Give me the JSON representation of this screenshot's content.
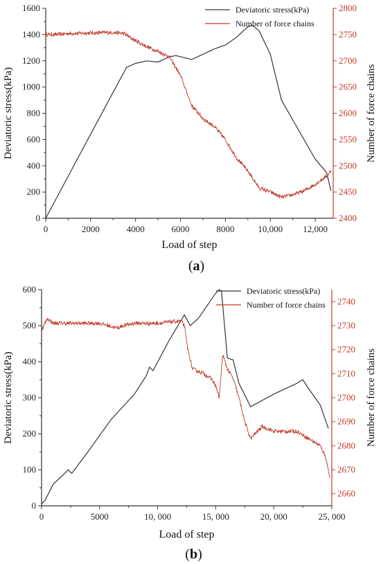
{
  "chart_data": [
    {
      "type": "line",
      "panel_label": "a",
      "xlabel": "Load of step",
      "xlim": [
        0,
        12800
      ],
      "xticks": [
        "0",
        "2000",
        "4000",
        "6000",
        "8000",
        "10,000",
        "12,000"
      ],
      "xtick_values": [
        0,
        2000,
        4000,
        6000,
        8000,
        10000,
        12000
      ],
      "grid": false,
      "legend": "top-right",
      "y_left": {
        "label": "Deviatoric stress(kPa)",
        "ylim": [
          0,
          1600
        ],
        "ticks": [
          "0",
          "200",
          "400",
          "600",
          "800",
          "1000",
          "1200",
          "1400",
          "1600"
        ],
        "tick_values": [
          0,
          200,
          400,
          600,
          800,
          1000,
          1200,
          1400,
          1600
        ]
      },
      "y_right": {
        "label": "Number of force chains",
        "ylim": [
          2400,
          2800
        ],
        "ticks": [
          "2400",
          "2450",
          "2500",
          "2550",
          "2600",
          "2650",
          "2700",
          "2750",
          "2800"
        ],
        "tick_values": [
          2400,
          2450,
          2500,
          2550,
          2600,
          2650,
          2700,
          2750,
          2800
        ],
        "color": "#c0392b"
      },
      "series": [
        {
          "name": "Deviatoric stress(kPa)",
          "axis": "left",
          "color": "#333333",
          "x": [
            0,
            1000,
            2000,
            3000,
            3600,
            4000,
            4500,
            5000,
            5500,
            5800,
            6500,
            7000,
            7500,
            8000,
            8500,
            9000,
            9200,
            9500,
            10000,
            10500,
            11000,
            11500,
            12000,
            12500,
            12700
          ],
          "y": [
            0,
            320,
            640,
            960,
            1150,
            1180,
            1200,
            1190,
            1230,
            1240,
            1210,
            1250,
            1290,
            1320,
            1380,
            1460,
            1470,
            1430,
            1250,
            900,
            750,
            600,
            450,
            350,
            210
          ]
        },
        {
          "name": "Number of force chains",
          "axis": "right",
          "color": "#c0392b",
          "noisy": true,
          "x": [
            0,
            500,
            1000,
            2000,
            3000,
            3500,
            3800,
            4500,
            5000,
            5500,
            6000,
            6500,
            7000,
            7500,
            8000,
            8500,
            9000,
            9500,
            10000,
            10500,
            11000,
            11500,
            12000,
            12500,
            12700
          ],
          "y": [
            2750,
            2750,
            2752,
            2753,
            2754,
            2752,
            2743,
            2727,
            2718,
            2708,
            2672,
            2615,
            2590,
            2575,
            2550,
            2515,
            2490,
            2458,
            2450,
            2440,
            2445,
            2452,
            2465,
            2480,
            2490
          ]
        }
      ]
    },
    {
      "type": "line",
      "panel_label": "b",
      "xlabel": "Load of step",
      "xlim": [
        0,
        25000
      ],
      "xticks": [
        "0",
        "5000",
        "10, 000",
        "15, 000",
        "20, 000",
        "25, 000"
      ],
      "xtick_values": [
        0,
        5000,
        10000,
        15000,
        20000,
        25000
      ],
      "grid": false,
      "legend": "top-right",
      "y_left": {
        "label": "Deviatoric stress(kPa)",
        "ylim": [
          0,
          600
        ],
        "ticks": [
          "0",
          "100",
          "200",
          "300",
          "400",
          "500",
          "600"
        ],
        "tick_values": [
          0,
          100,
          200,
          300,
          400,
          500,
          600
        ]
      },
      "y_right": {
        "label": "Number of force chains",
        "ylim": [
          2655,
          2745
        ],
        "ticks": [
          "2660",
          "2670",
          "2680",
          "2690",
          "2700",
          "2710",
          "2720",
          "2730",
          "2740"
        ],
        "tick_values": [
          2660,
          2670,
          2680,
          2690,
          2700,
          2710,
          2720,
          2730,
          2740
        ],
        "color": "#c0392b"
      },
      "series": [
        {
          "name": "Deviatoric stress(kPa)",
          "axis": "left",
          "color": "#333333",
          "x": [
            0,
            300,
            1000,
            2000,
            2300,
            2600,
            4000,
            6000,
            7000,
            8000,
            9000,
            9300,
            9600,
            11000,
            12300,
            12800,
            13500,
            15000,
            15300,
            15500,
            16000,
            16500,
            17000,
            18000,
            20000,
            22000,
            22500,
            23000,
            24000,
            24700
          ],
          "y": [
            5,
            15,
            60,
            90,
            100,
            90,
            150,
            240,
            275,
            310,
            360,
            385,
            375,
            460,
            530,
            500,
            520,
            590,
            600,
            595,
            410,
            405,
            340,
            275,
            310,
            340,
            350,
            325,
            280,
            215
          ]
        },
        {
          "name": "Number of force chains",
          "axis": "right",
          "color": "#c0392b",
          "noisy": true,
          "x": [
            0,
            200,
            500,
            1000,
            3000,
            5000,
            6500,
            7000,
            8000,
            9000,
            10000,
            12000,
            12300,
            12600,
            13000,
            14000,
            14600,
            15000,
            15300,
            15600,
            16000,
            16500,
            17000,
            17500,
            18000,
            19000,
            20000,
            21000,
            22000,
            23000,
            24000,
            24500,
            24800
          ],
          "y": [
            2728,
            2730,
            2733,
            2731,
            2731,
            2731,
            2729,
            2730,
            2731,
            2731,
            2731,
            2732,
            2730,
            2720,
            2712,
            2710,
            2708,
            2705,
            2700,
            2718,
            2712,
            2708,
            2700,
            2690,
            2683,
            2688,
            2686,
            2686,
            2686,
            2683,
            2680,
            2675,
            2667
          ]
        }
      ]
    }
  ]
}
